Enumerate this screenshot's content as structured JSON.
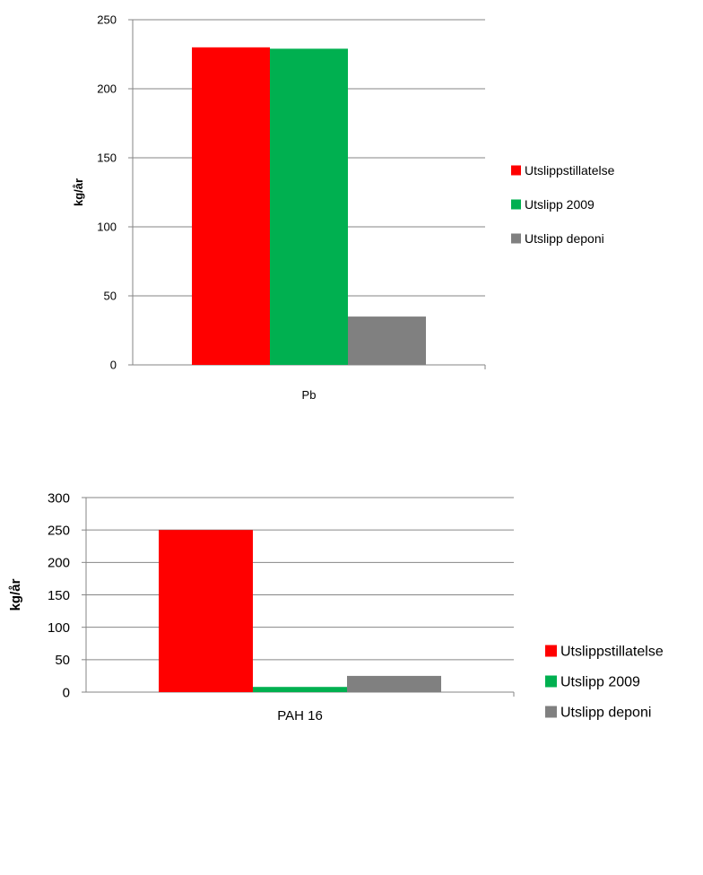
{
  "chart_data": [
    {
      "type": "bar",
      "categories": [
        "Pb"
      ],
      "series": [
        {
          "name": "Utslippstillatelse",
          "values": [
            230
          ],
          "color": "#ff0000"
        },
        {
          "name": "Utslipp 2009",
          "values": [
            229
          ],
          "color": "#00b050"
        },
        {
          "name": "Utslipp deponi",
          "values": [
            35
          ],
          "color": "#808080"
        }
      ],
      "ylabel": "kg/år",
      "ylim": [
        0,
        250
      ],
      "yticks": [
        "0",
        "50",
        "100",
        "150",
        "200",
        "250"
      ],
      "grid": true,
      "legend": "right"
    },
    {
      "type": "bar",
      "categories": [
        "PAH 16"
      ],
      "series": [
        {
          "name": "Utslippstillatelse",
          "values": [
            250
          ],
          "color": "#ff0000"
        },
        {
          "name": "Utslipp 2009",
          "values": [
            8
          ],
          "color": "#00b050"
        },
        {
          "name": "Utslipp deponi",
          "values": [
            25
          ],
          "color": "#808080"
        }
      ],
      "ylabel": "kg/år",
      "ylim": [
        0,
        300
      ],
      "yticks": [
        "0",
        "50",
        "100",
        "150",
        "200",
        "250",
        "300"
      ],
      "grid": true,
      "legend": "right"
    }
  ]
}
